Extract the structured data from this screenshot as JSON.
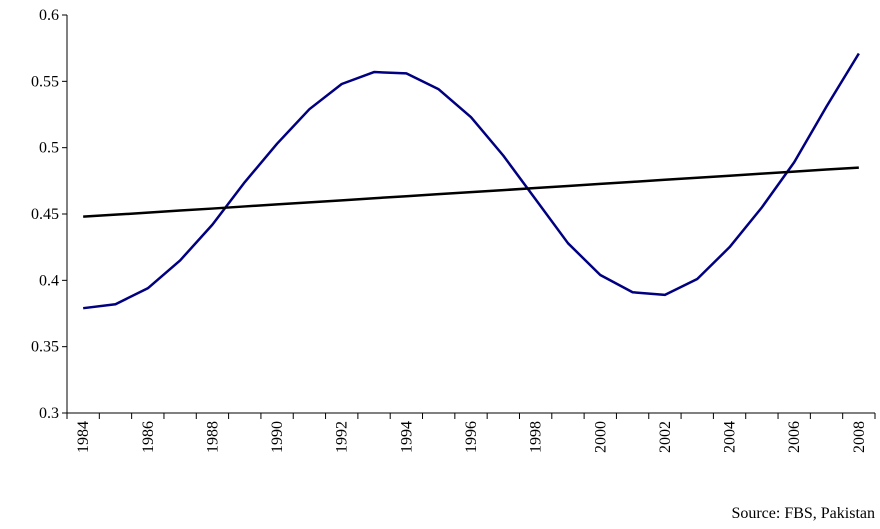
{
  "chart_data": {
    "type": "line",
    "categories": [
      "1984",
      null,
      "1986",
      null,
      "1988",
      null,
      "1990",
      null,
      "1992",
      null,
      "1994",
      null,
      "1996",
      null,
      "1998",
      null,
      "2000",
      null,
      "2002",
      null,
      "2004",
      null,
      "2006",
      null,
      "2008"
    ],
    "series": [
      {
        "color": "#000080",
        "values": [
          0.379,
          0.382,
          0.394,
          0.415,
          0.442,
          0.474,
          0.503,
          0.529,
          0.548,
          0.557,
          0.556,
          0.544,
          0.523,
          0.494,
          0.461,
          0.428,
          0.404,
          0.391,
          0.389,
          0.401,
          0.425,
          0.455,
          0.489,
          0.531,
          0.571
        ]
      },
      {
        "color": "#000000",
        "values": [
          0.448,
          0.4495,
          0.451,
          0.4526,
          0.4541,
          0.4557,
          0.4573,
          0.4588,
          0.4603,
          0.4619,
          0.4634,
          0.465,
          0.4665,
          0.468,
          0.4696,
          0.4711,
          0.4727,
          0.4742,
          0.4758,
          0.4773,
          0.4788,
          0.4804,
          0.4819,
          0.4835,
          0.485
        ]
      }
    ],
    "ylim": [
      0.3,
      0.6
    ],
    "yticks": [
      0.3,
      0.35,
      0.4,
      0.45,
      0.5,
      0.55,
      0.6
    ],
    "grid": false,
    "source": "Source: FBS, Pakistan"
  }
}
